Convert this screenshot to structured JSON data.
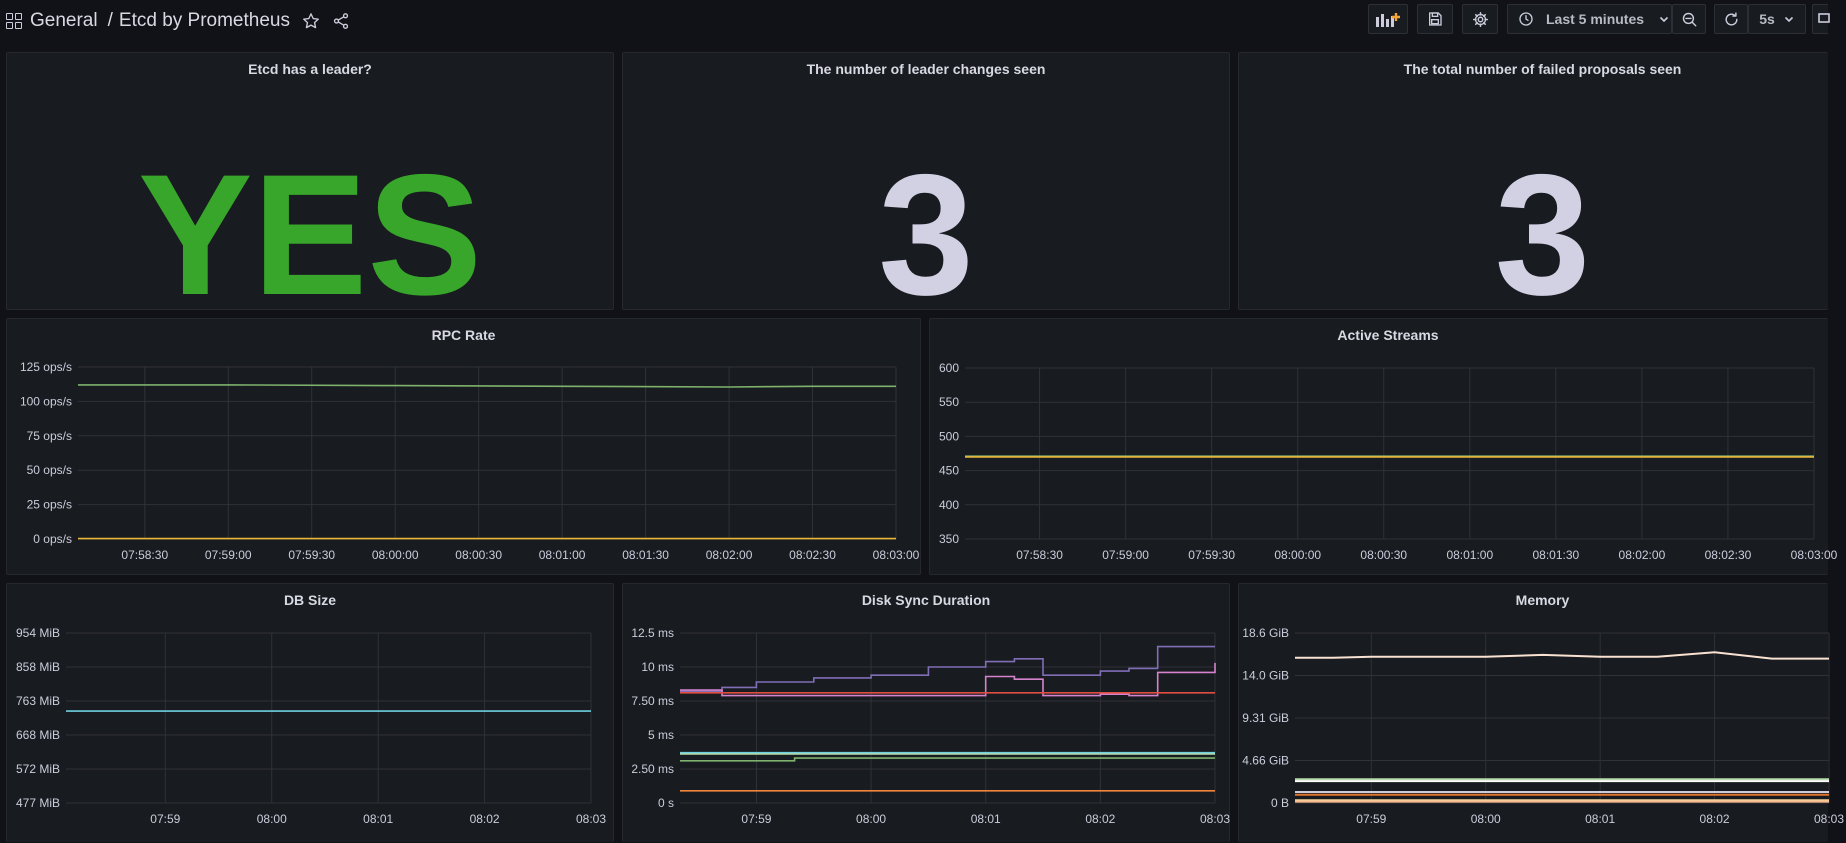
{
  "header": {
    "folder": "General",
    "separator": "/",
    "dashboard_title": "Etcd by Prometheus",
    "time_range": "Last 5 minutes",
    "refresh": "5s"
  },
  "stats": {
    "leader": {
      "title": "Etcd has a leader?",
      "value": "YES",
      "color": "#37a62a"
    },
    "leader_changes": {
      "title": "The number of leader changes seen",
      "value": "3",
      "color": "#d2d1e4"
    },
    "failed_proposals": {
      "title": "The total number of failed proposals seen",
      "value": "3",
      "color": "#d2d1e4"
    }
  },
  "chart_data": [
    {
      "id": "rpc",
      "type": "line",
      "title": "RPC Rate",
      "y_ticks": [
        "0 ops/s",
        "25 ops/s",
        "50 ops/s",
        "75 ops/s",
        "100 ops/s",
        "125 ops/s"
      ],
      "ylim": [
        0,
        125
      ],
      "x_ticks": [
        "07:58:30",
        "07:59:00",
        "07:59:30",
        "08:00:00",
        "08:00:30",
        "08:01:00",
        "08:01:30",
        "08:02:00",
        "08:02:30",
        "08:03:00"
      ],
      "x_range": [
        "07:58:06",
        "08:03:00"
      ],
      "series": [
        {
          "color": "#7eb26d",
          "x": [
            "07:58:06",
            "07:59:00",
            "08:00:00",
            "08:01:00",
            "08:02:00",
            "08:02:30",
            "08:03:00"
          ],
          "values": [
            112,
            112,
            111.5,
            111,
            110.5,
            111,
            111
          ]
        },
        {
          "color": "#eab839",
          "x": [
            "07:58:06",
            "08:03:00"
          ],
          "values": [
            0.3,
            0.3
          ]
        }
      ]
    },
    {
      "id": "streams",
      "type": "line",
      "title": "Active Streams",
      "y_ticks": [
        "350",
        "400",
        "450",
        "500",
        "550",
        "600"
      ],
      "ylim": [
        350,
        600
      ],
      "x_ticks": [
        "07:58:30",
        "07:59:00",
        "07:59:30",
        "08:00:00",
        "08:00:30",
        "08:01:00",
        "08:01:30",
        "08:02:00",
        "08:02:30",
        "08:03:00"
      ],
      "x_range": [
        "07:58:04",
        "08:03:00"
      ],
      "series": [
        {
          "color": "#7eb26d",
          "x": [
            "07:58:04",
            "08:03:00"
          ],
          "values": [
            471,
            471
          ]
        },
        {
          "color": "#eab839",
          "x": [
            "07:58:04",
            "08:03:00"
          ],
          "values": [
            470,
            470
          ]
        }
      ]
    },
    {
      "id": "db",
      "type": "line",
      "title": "DB Size",
      "y_ticks": [
        "477 MiB",
        "572 MiB",
        "668 MiB",
        "763 MiB",
        "858 MiB",
        "954 MiB"
      ],
      "ylim": [
        477,
        954
      ],
      "x_ticks": [
        "07:59",
        "08:00",
        "08:01",
        "08:02",
        "08:03"
      ],
      "x_range": [
        "07:58:04",
        "08:03:00"
      ],
      "series": [
        {
          "color": "#6ed0e0",
          "x": [
            "07:58:04",
            "08:03:00"
          ],
          "values": [
            735,
            735
          ]
        }
      ]
    },
    {
      "id": "disk",
      "type": "line",
      "title": "Disk Sync Duration",
      "y_ticks": [
        "0 s",
        "2.50 ms",
        "5 ms",
        "7.50 ms",
        "10 ms",
        "12.5 ms"
      ],
      "ylim": [
        0,
        12.5
      ],
      "x_ticks": [
        "07:59",
        "08:00",
        "08:01",
        "08:02",
        "08:03"
      ],
      "x_range": [
        "07:58:20",
        "08:03:00"
      ],
      "series": [
        {
          "color": "#806eb7",
          "x": [
            "07:58:20",
            "07:58:42",
            "07:58:42",
            "07:59:00",
            "07:59:00",
            "07:59:30",
            "07:59:30",
            "08:00:00",
            "08:00:00",
            "08:00:30",
            "08:00:30",
            "08:01:00",
            "08:01:00",
            "08:01:15",
            "08:01:15",
            "08:01:30",
            "08:01:30",
            "08:02:00",
            "08:02:00",
            "08:02:15",
            "08:02:15",
            "08:02:30",
            "08:02:30",
            "08:03:00"
          ],
          "values": [
            8.2,
            8.2,
            8.5,
            8.5,
            8.9,
            8.9,
            9.2,
            9.2,
            9.4,
            9.4,
            10.0,
            10.0,
            10.4,
            10.4,
            10.6,
            10.6,
            9.4,
            9.4,
            9.7,
            9.7,
            9.9,
            9.9,
            11.5,
            11.5
          ]
        },
        {
          "color": "#d683ce",
          "x": [
            "07:58:20",
            "07:58:42",
            "07:58:42",
            "08:01:00",
            "08:01:00",
            "08:01:15",
            "08:01:15",
            "08:01:30",
            "08:01:30",
            "08:02:00",
            "08:02:00",
            "08:02:15",
            "08:02:15",
            "08:02:30",
            "08:02:30",
            "08:03:00",
            "08:03:00"
          ],
          "values": [
            8.3,
            8.3,
            7.9,
            7.9,
            9.3,
            9.3,
            9.1,
            9.1,
            7.9,
            7.9,
            8.0,
            8.0,
            7.9,
            7.9,
            9.6,
            9.6,
            10.3
          ]
        },
        {
          "color": "#e24d42",
          "x": [
            "07:58:20",
            "08:03:00"
          ],
          "values": [
            8.1,
            8.1
          ]
        },
        {
          "color": "#6ed0e0",
          "x": [
            "07:58:20",
            "08:03:00"
          ],
          "values": [
            3.7,
            3.7
          ]
        },
        {
          "color": "#b7dbab",
          "x": [
            "07:58:20",
            "08:03:00"
          ],
          "values": [
            3.6,
            3.6
          ]
        },
        {
          "color": "#7eb26d",
          "x": [
            "07:58:20",
            "07:59:20",
            "07:59:20",
            "08:03:00"
          ],
          "values": [
            3.1,
            3.1,
            3.3,
            3.3
          ]
        },
        {
          "color": "#ef843c",
          "x": [
            "07:58:20",
            "08:03:00"
          ],
          "values": [
            0.9,
            0.9
          ]
        }
      ]
    },
    {
      "id": "mem",
      "type": "line",
      "title": "Memory",
      "y_ticks": [
        "0 B",
        "4.66 GiB",
        "9.31 GiB",
        "14.0 GiB",
        "18.6 GiB"
      ],
      "ylim": [
        0,
        18.6
      ],
      "x_ticks": [
        "07:59",
        "08:00",
        "08:01",
        "08:02",
        "08:03"
      ],
      "x_range": [
        "07:58:20",
        "08:03:00"
      ],
      "series": [
        {
          "color": "#f9e2d2",
          "x": [
            "07:58:20",
            "07:58:40",
            "07:59:00",
            "07:59:30",
            "08:00:00",
            "08:00:30",
            "08:01:00",
            "08:01:30",
            "08:02:00",
            "08:02:30",
            "08:03:00"
          ],
          "values": [
            15.9,
            15.9,
            16.0,
            16.0,
            16.0,
            16.2,
            16.0,
            16.0,
            16.5,
            15.8,
            15.8
          ]
        },
        {
          "color": "#b7dbab",
          "x": [
            "07:58:20",
            "08:03:00"
          ],
          "values": [
            2.6,
            2.6
          ]
        },
        {
          "color": "#ffffff",
          "x": [
            "07:58:20",
            "08:03:00"
          ],
          "values": [
            2.4,
            2.4
          ]
        },
        {
          "color": "#ccccdc",
          "x": [
            "07:58:20",
            "08:03:00"
          ],
          "values": [
            1.2,
            1.2
          ]
        },
        {
          "color": "#e0752d",
          "x": [
            "07:58:20",
            "08:03:00"
          ],
          "values": [
            0.9,
            0.9
          ]
        },
        {
          "color": "#f4d598",
          "x": [
            "07:58:20",
            "08:03:00"
          ],
          "values": [
            0.3,
            0.3
          ]
        },
        {
          "color": "#f9ba8f",
          "x": [
            "07:58:20",
            "08:03:00"
          ],
          "values": [
            0.15,
            0.15
          ]
        }
      ]
    }
  ]
}
